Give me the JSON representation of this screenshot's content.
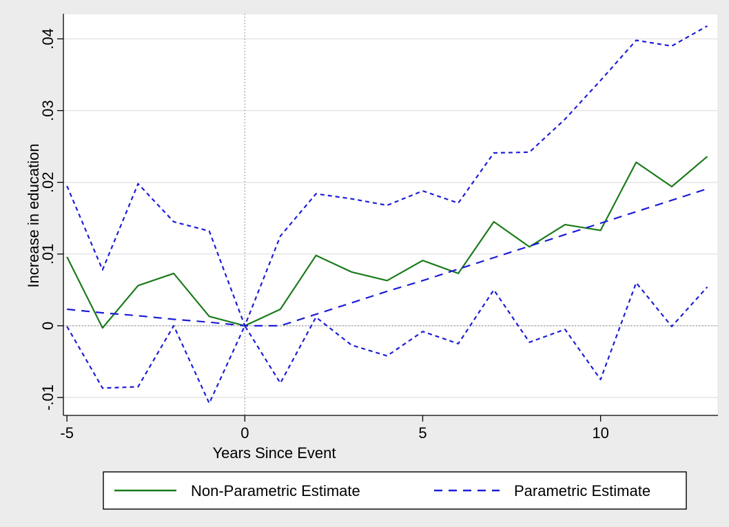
{
  "chart_data": {
    "type": "line",
    "xlabel": "Years Since Event",
    "ylabel": "Increase in education",
    "xlim": [
      -5.1,
      13.3
    ],
    "ylim": [
      -0.0125,
      0.0435
    ],
    "xticks": [
      -5,
      0,
      5,
      10
    ],
    "xtick_labels": [
      "-5",
      "0",
      "5",
      "10"
    ],
    "yticks": [
      -0.01,
      0,
      0.01,
      0.02,
      0.03,
      0.04
    ],
    "ytick_labels": [
      "-.01",
      "0",
      ".01",
      ".02",
      ".03",
      ".04"
    ],
    "grid": "horizontal",
    "reference_lines": {
      "x": 0,
      "y": 0
    },
    "legend_position": "bottom",
    "x": [
      -5,
      -4,
      -3,
      -2,
      -1,
      0,
      1,
      2,
      3,
      4,
      5,
      6,
      7,
      8,
      9,
      10,
      11,
      12,
      13
    ],
    "series": [
      {
        "name": "Non-Parametric Estimate",
        "color": "#1a7a1a",
        "style": "solid",
        "values": [
          0.0096,
          -0.0003,
          0.0056,
          0.0073,
          0.0013,
          0.0,
          0.0023,
          0.0098,
          0.0075,
          0.0063,
          0.0091,
          0.0073,
          0.0145,
          0.011,
          0.0141,
          0.0133,
          0.0228,
          0.0194,
          0.0236
        ]
      },
      {
        "name": "Parametric Estimate",
        "color": "#1c1cd8",
        "style": "long-dash",
        "values": [
          0.0023,
          0.0018,
          0.0014,
          0.0009,
          0.0005,
          0.0,
          0.0,
          0.0016,
          0.0032,
          0.0048,
          0.0063,
          0.0079,
          0.0095,
          0.0111,
          0.0127,
          0.0143,
          0.0159,
          0.0175,
          0.0191
        ]
      },
      {
        "color": "#1c1cd8",
        "style": "short-dash",
        "values": [
          0.0195,
          0.0078,
          0.0198,
          0.0145,
          0.0132,
          0.0,
          0.0125,
          0.0184,
          0.0177,
          0.0168,
          0.0188,
          0.0171,
          0.0241,
          0.0242,
          0.0288,
          0.0342,
          0.0398,
          0.039,
          0.0418
        ]
      },
      {
        "color": "#1c1cd8",
        "style": "short-dash",
        "values": [
          -0.0001,
          -0.0087,
          -0.0085,
          0.0,
          -0.0108,
          0.0,
          -0.008,
          0.0012,
          -0.0027,
          -0.0042,
          -0.0008,
          -0.0025,
          0.005,
          -0.0023,
          -0.0005,
          -0.0075,
          0.006,
          -0.0001,
          0.0054
        ]
      }
    ]
  }
}
